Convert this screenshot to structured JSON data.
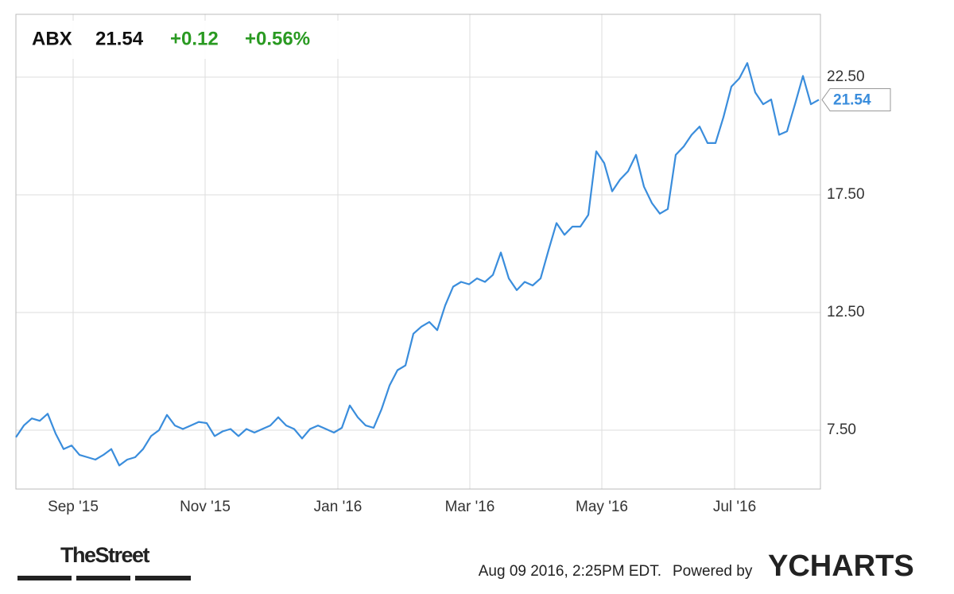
{
  "header": {
    "symbol": "ABX",
    "price": "21.54",
    "change": "+0.12",
    "change_pct": "+0.56%"
  },
  "chart_data": {
    "type": "line",
    "series": [
      {
        "name": "ABX",
        "color": "#3a8ddc",
        "values": [
          7.2,
          7.7,
          8.0,
          7.9,
          8.2,
          7.35,
          6.7,
          6.85,
          6.45,
          6.35,
          6.25,
          6.45,
          6.7,
          6.0,
          6.25,
          6.35,
          6.7,
          7.25,
          7.5,
          8.15,
          7.7,
          7.55,
          7.7,
          7.85,
          7.8,
          7.25,
          7.45,
          7.55,
          7.25,
          7.55,
          7.4,
          7.55,
          7.7,
          8.05,
          7.7,
          7.55,
          7.15,
          7.55,
          7.7,
          7.55,
          7.4,
          7.6,
          8.55,
          8.05,
          7.7,
          7.6,
          8.4,
          9.4,
          10.05,
          10.25,
          11.6,
          11.9,
          12.1,
          11.75,
          12.8,
          13.6,
          13.8,
          13.7,
          13.95,
          13.8,
          14.1,
          15.05,
          13.95,
          13.45,
          13.8,
          13.65,
          13.95,
          15.15,
          16.3,
          15.8,
          16.15,
          16.15,
          16.65,
          19.35,
          18.85,
          17.65,
          18.15,
          18.5,
          19.2,
          17.85,
          17.15,
          16.7,
          16.9,
          19.2,
          19.55,
          20.05,
          20.4,
          19.7,
          19.7,
          20.8,
          22.1,
          22.45,
          23.1,
          21.85,
          21.35,
          21.55,
          20.05,
          20.2,
          21.35,
          22.55,
          21.35,
          21.54
        ]
      }
    ],
    "last_value_label": "21.54",
    "xlim": [
      0,
      101
    ],
    "xticks": [
      {
        "value": 7.2,
        "label": "Sep '15"
      },
      {
        "value": 23.8,
        "label": "Nov '15"
      },
      {
        "value": 40.5,
        "label": "Jan '16"
      },
      {
        "value": 57.1,
        "label": "Mar '16"
      },
      {
        "value": 73.7,
        "label": "May '16"
      },
      {
        "value": 90.4,
        "label": "Jul '16"
      }
    ],
    "ylim": [
      5.0,
      25.17
    ],
    "yticks": [
      {
        "value": 7.5,
        "label": "7.50"
      },
      {
        "value": 12.5,
        "label": "12.50"
      },
      {
        "value": 17.5,
        "label": "17.50"
      },
      {
        "value": 22.5,
        "label": "22.50"
      }
    ],
    "grid": true
  },
  "footer": {
    "source_logo": "TheStreet",
    "timestamp": "Aug 09 2016, 2:25PM EDT.",
    "powered_by": "Powered by",
    "brand": "YCHARTS"
  }
}
